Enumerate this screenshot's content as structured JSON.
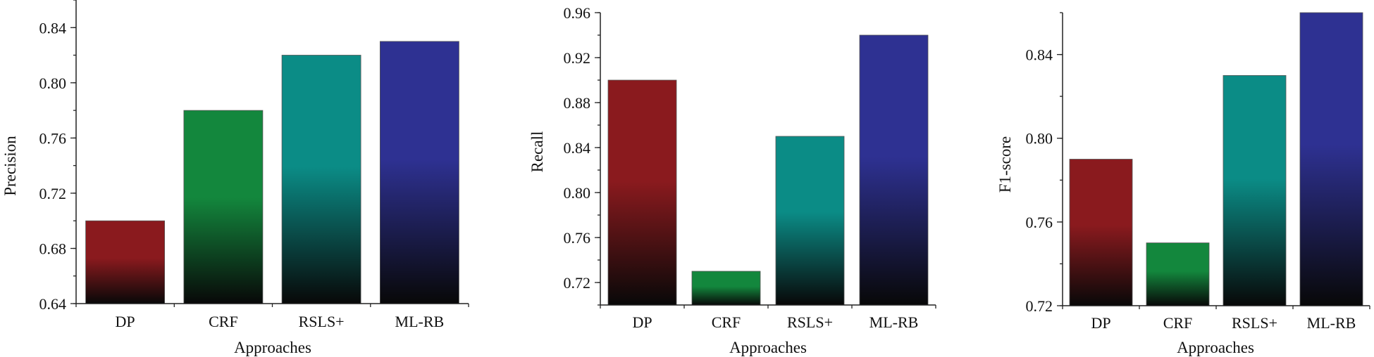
{
  "chart_data": [
    {
      "type": "bar",
      "title": "",
      "xlabel": "Approaches",
      "ylabel": "Precision",
      "categories": [
        "DP",
        "CRF",
        "RSLS+",
        "ML-RB"
      ],
      "values": [
        0.7,
        0.78,
        0.82,
        0.83
      ],
      "ylim": [
        0.64,
        0.86
      ],
      "yticks": [
        0.64,
        0.68,
        0.72,
        0.76,
        0.8,
        0.84
      ],
      "ytick_labels": [
        "0.64",
        "0.68",
        "0.72",
        "0.76",
        "0.80",
        "0.84"
      ],
      "grid": false
    },
    {
      "type": "bar",
      "title": "",
      "xlabel": "Approaches",
      "ylabel": "Recall",
      "categories": [
        "DP",
        "CRF",
        "RSLS+",
        "ML-RB"
      ],
      "values": [
        0.9,
        0.73,
        0.85,
        0.94
      ],
      "ylim": [
        0.7,
        0.96
      ],
      "yticks": [
        0.72,
        0.76,
        0.8,
        0.84,
        0.88,
        0.92,
        0.96
      ],
      "ytick_labels": [
        "0.72",
        "0.76",
        "0.80",
        "0.84",
        "0.88",
        "0.92",
        "0.96"
      ],
      "grid": false
    },
    {
      "type": "bar",
      "title": "",
      "xlabel": "Approaches",
      "ylabel": "F1-score",
      "categories": [
        "DP",
        "CRF",
        "RSLS+",
        "ML-RB"
      ],
      "values": [
        0.79,
        0.75,
        0.83,
        0.86
      ],
      "ylim": [
        0.72,
        0.86
      ],
      "yticks": [
        0.72,
        0.76,
        0.8,
        0.84
      ],
      "ytick_labels": [
        "0.72",
        "0.76",
        "0.80",
        "0.84"
      ],
      "grid": false
    }
  ],
  "bar_colors": [
    "#8a1a1e",
    "#13873d",
    "#0b8c86",
    "#2e3192"
  ],
  "bar_base_color": "#080808"
}
